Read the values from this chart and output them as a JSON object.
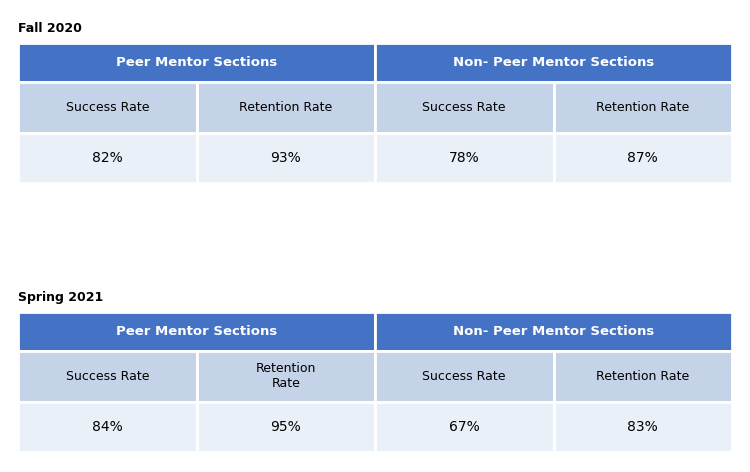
{
  "title1": "Fall 2020",
  "title2": "Spring 2021",
  "header_bg": "#4472C4",
  "header_text_color": "#FFFFFF",
  "subheader_bg": "#C5D3E8",
  "data_bg": "#EAF0F8",
  "border_color": "#FFFFFF",
  "table1": {
    "col_headers": [
      "Peer Mentor Sections",
      "Non- Peer Mentor Sections"
    ],
    "col_header_spans": [
      2,
      2
    ],
    "row_headers": [
      "Success Rate",
      "Retention Rate",
      "Success Rate",
      "Retention Rate"
    ],
    "values": [
      "82%",
      "93%",
      "78%",
      "87%"
    ]
  },
  "table2": {
    "col_headers": [
      "Peer Mentor Sections",
      "Non- Peer Mentor Sections"
    ],
    "col_header_spans": [
      2,
      2
    ],
    "row_headers": [
      "Success Rate",
      "Retention\nRate",
      "Success Rate",
      "Retention Rate"
    ],
    "values": [
      "84%",
      "95%",
      "67%",
      "83%"
    ]
  }
}
